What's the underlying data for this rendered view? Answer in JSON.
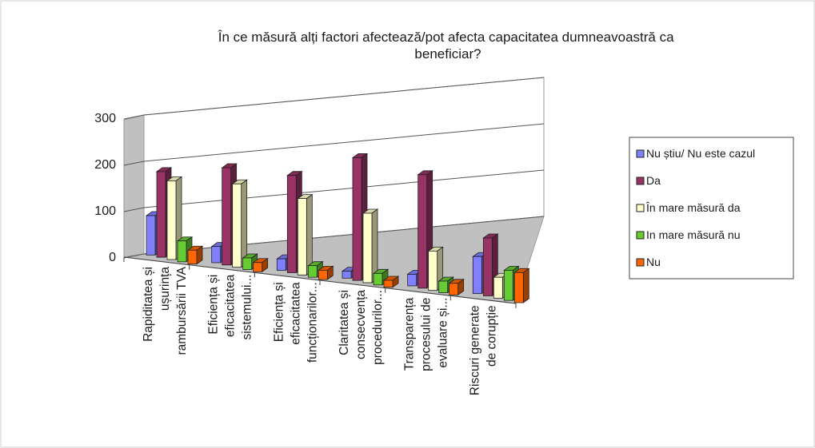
{
  "chart_data": {
    "type": "bar",
    "title": "În ce măsură alți factori afectează/pot afecta capacitatea dumneavoastră ca beneficiar?",
    "categories": [
      [
        "Rapiditatea și",
        "ușurința",
        "rambursării TVA"
      ],
      [
        "Eficiența și",
        "eficacitatea",
        "sistemului..."
      ],
      [
        "Eficiența și",
        "eficacitatea",
        "funcționarilor..."
      ],
      [
        "Claritatea și",
        "consecvența",
        "procedurilor..."
      ],
      [
        "Transparența",
        "procesului de",
        "evaluare și..."
      ],
      [
        "Riscuri generate",
        "de corupție"
      ]
    ],
    "series": [
      {
        "name": "Nu știu/ Nu este cazul",
        "color": "#8080ff",
        "values": [
          85,
          35,
          25,
          15,
          25,
          80
        ]
      },
      {
        "name": "Da",
        "color": "#993366",
        "values": [
          185,
          210,
          210,
          265,
          245,
          125
        ]
      },
      {
        "name": "În mare măsură da",
        "color": "#ffffcc",
        "values": [
          170,
          180,
          165,
          150,
          85,
          45
        ]
      },
      {
        "name": "In mare măsură nu",
        "color": "#66cc33",
        "values": [
          45,
          25,
          25,
          25,
          25,
          65
        ]
      },
      {
        "name": "Nu",
        "color": "#ff6600",
        "values": [
          30,
          20,
          20,
          15,
          25,
          65
        ]
      }
    ],
    "yticks": [
      0,
      100,
      200,
      300
    ],
    "ylim": [
      0,
      300
    ],
    "xlabel": "",
    "ylabel": "",
    "legend_position": "right",
    "grid": true,
    "three_d": true
  }
}
